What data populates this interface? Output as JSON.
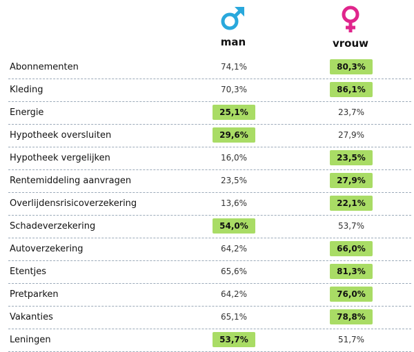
{
  "header": {
    "man_label": "man",
    "vrouw_label": "vrouw",
    "man_symbol_color": "#29a8dc",
    "vrouw_symbol_color": "#e0258c"
  },
  "highlight_color": "#a9dc65",
  "chart_data": {
    "type": "table",
    "columns": [
      "man",
      "vrouw"
    ],
    "rows": [
      {
        "label": "Abonnementen",
        "man": "74,1%",
        "vrouw": "80,3%",
        "highlight": "vrouw"
      },
      {
        "label": "Kleding",
        "man": "70,3%",
        "vrouw": "86,1%",
        "highlight": "vrouw"
      },
      {
        "label": "Energie",
        "man": "25,1%",
        "vrouw": "23,7%",
        "highlight": "man"
      },
      {
        "label": "Hypotheek oversluiten",
        "man": "29,6%",
        "vrouw": "27,9%",
        "highlight": "man"
      },
      {
        "label": "Hypotheek vergelijken",
        "man": "16,0%",
        "vrouw": "23,5%",
        "highlight": "vrouw"
      },
      {
        "label": "Rentemiddeling aanvragen",
        "man": "23,5%",
        "vrouw": "27,9%",
        "highlight": "vrouw"
      },
      {
        "label": "Overlijdensrisicoverzekering",
        "man": "13,6%",
        "vrouw": "22,1%",
        "highlight": "vrouw"
      },
      {
        "label": "Schadeverzekering",
        "man": "54,0%",
        "vrouw": "53,7%",
        "highlight": "man"
      },
      {
        "label": "Autoverzekering",
        "man": "64,2%",
        "vrouw": "66,0%",
        "highlight": "vrouw"
      },
      {
        "label": "Etentjes",
        "man": "65,6%",
        "vrouw": "81,3%",
        "highlight": "vrouw"
      },
      {
        "label": "Pretparken",
        "man": "64,2%",
        "vrouw": "76,0%",
        "highlight": "vrouw"
      },
      {
        "label": "Vakanties",
        "man": "65,1%",
        "vrouw": "78,8%",
        "highlight": "vrouw"
      },
      {
        "label": "Leningen",
        "man": "53,7%",
        "vrouw": "51,7%",
        "highlight": "man"
      }
    ]
  }
}
